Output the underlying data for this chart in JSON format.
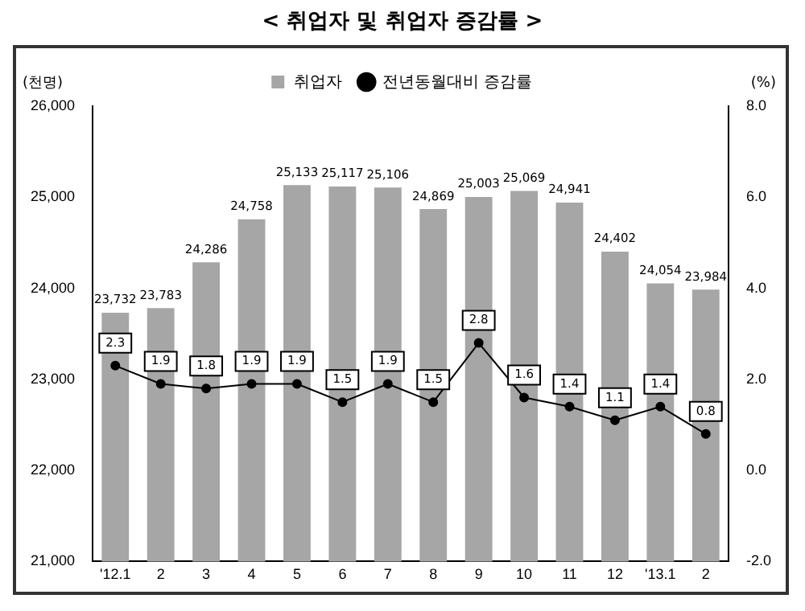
{
  "chart_data": {
    "type": "bar",
    "title": "< 취업자 및 취업자 증감률 >",
    "ylabel": "(천명)",
    "y2label": "(%)",
    "categories": [
      "'12.1",
      "2",
      "3",
      "4",
      "5",
      "6",
      "7",
      "8",
      "9",
      "10",
      "11",
      "12",
      "'13.1",
      "2"
    ],
    "series": [
      {
        "name": "취업자",
        "color": "#a6a6a6",
        "values": [
          23732,
          23783,
          24286,
          24758,
          25133,
          25117,
          25106,
          24869,
          25003,
          25069,
          24941,
          24402,
          24054,
          23984
        ],
        "value_labels": [
          "23,732",
          "23,783",
          "24,286",
          "24,758",
          "25,133",
          "25,117",
          "25,106",
          "24,869",
          "25,003",
          "25,069",
          "24,941",
          "24,402",
          "24,054",
          "23,984"
        ]
      },
      {
        "name": "전년동월대비 증감률",
        "type": "line",
        "axis": "y2",
        "color": "#000000",
        "values": [
          2.3,
          1.9,
          1.8,
          1.9,
          1.9,
          1.5,
          1.9,
          1.5,
          2.8,
          1.6,
          1.4,
          1.1,
          1.4,
          0.8
        ]
      }
    ],
    "ylim": [
      21000,
      26000
    ],
    "yticks": [
      {
        "value": 21000,
        "label": "21,000"
      },
      {
        "value": 22000,
        "label": "22,000"
      },
      {
        "value": 23000,
        "label": "23,000"
      },
      {
        "value": 24000,
        "label": "24,000"
      },
      {
        "value": 25000,
        "label": "25,000"
      },
      {
        "value": 26000,
        "label": "26,000"
      }
    ],
    "y2lim": [
      -2,
      8
    ],
    "y2ticks": [
      {
        "value": -2,
        "label": "-2.0"
      },
      {
        "value": 0,
        "label": "0.0"
      },
      {
        "value": 2,
        "label": "2.0"
      },
      {
        "value": 4,
        "label": "4.0"
      },
      {
        "value": 6,
        "label": "6.0"
      },
      {
        "value": 8,
        "label": "8.0"
      }
    ],
    "data_labels": true,
    "legend": "top",
    "marker": "circle",
    "grid": false
  }
}
